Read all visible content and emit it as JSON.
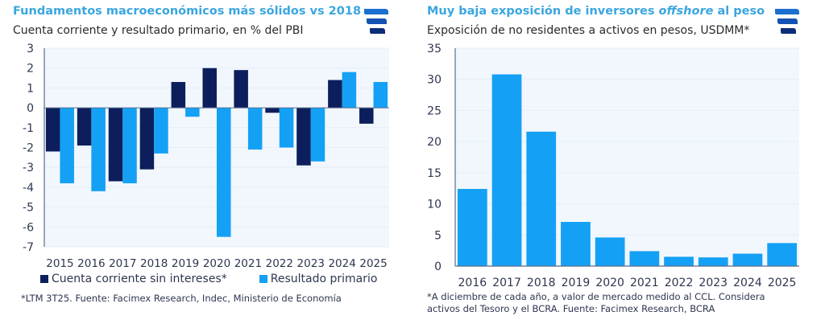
{
  "colors": {
    "dark_series": "#0c1f5c",
    "light_series": "#14a0f5",
    "plot_bg": "#f1f7fd",
    "title": "#3aa6e0",
    "axis_text": "#2e3650"
  },
  "chart_data": [
    {
      "type": "bar",
      "title": "Fundamentos macroeconómicos más sólidos vs 2018",
      "subtitle": "Cuenta corriente y resultado primario, en % del PBI",
      "xlabel": "",
      "ylabel": "",
      "categories": [
        "2015",
        "2016",
        "2017",
        "2018",
        "2019",
        "2020",
        "2021",
        "2022",
        "2023",
        "2024",
        "2025"
      ],
      "series": [
        {
          "name": "Cuenta corriente sin intereses*",
          "values": [
            -2.2,
            -1.9,
            -3.7,
            -3.1,
            1.3,
            2.0,
            1.9,
            -0.25,
            -2.9,
            1.4,
            -0.8
          ]
        },
        {
          "name": "Resultado primario",
          "values": [
            -3.8,
            -4.2,
            -3.8,
            -2.3,
            -0.45,
            -6.5,
            -2.1,
            -2.0,
            -2.7,
            1.8,
            1.3
          ]
        }
      ],
      "ylim": [
        -7,
        3
      ],
      "yticks": [
        "3",
        "2",
        "1",
        "0",
        "-1",
        "-2",
        "-3",
        "-4",
        "-5",
        "-6",
        "-7"
      ],
      "ytick_values": [
        3,
        2,
        1,
        0,
        -1,
        -2,
        -3,
        -4,
        -5,
        -6,
        -7
      ],
      "legend": [
        "Cuenta corriente sin intereses*",
        "Resultado primario"
      ],
      "legend_position": "bottom",
      "grid": true,
      "note": "*LTM 3T25. Fuente: Facimex Research, Indec, Ministerio de Economía"
    },
    {
      "type": "bar",
      "title_parts": [
        "Muy baja exposición de inversores ",
        "offshore",
        " al peso"
      ],
      "title": "Muy baja exposición de inversores offshore al peso",
      "subtitle": "Exposición de no residentes a activos en pesos, USDMM*",
      "xlabel": "",
      "ylabel": "",
      "categories": [
        "2016",
        "2017",
        "2018",
        "2019",
        "2020",
        "2021",
        "2022",
        "2023",
        "2024",
        "2025"
      ],
      "values": [
        12.4,
        30.8,
        21.6,
        7.1,
        4.6,
        2.4,
        1.5,
        1.4,
        2.0,
        3.7
      ],
      "ylim": [
        0,
        35
      ],
      "yticks": [
        "35",
        "30",
        "25",
        "20",
        "15",
        "10",
        "5",
        "0"
      ],
      "ytick_values": [
        35,
        30,
        25,
        20,
        15,
        10,
        5,
        0
      ],
      "grid": true,
      "note_lines": [
        "*A diciembre de cada año, a valor de mercado medido al CCL. Considera",
        "activos del Tesoro y el BCRA. Fuente: Facimex Research, BCRA"
      ]
    }
  ],
  "logos": [
    {
      "icon": "facimex-logo-icon"
    },
    {
      "icon": "facimex-logo-icon"
    }
  ]
}
